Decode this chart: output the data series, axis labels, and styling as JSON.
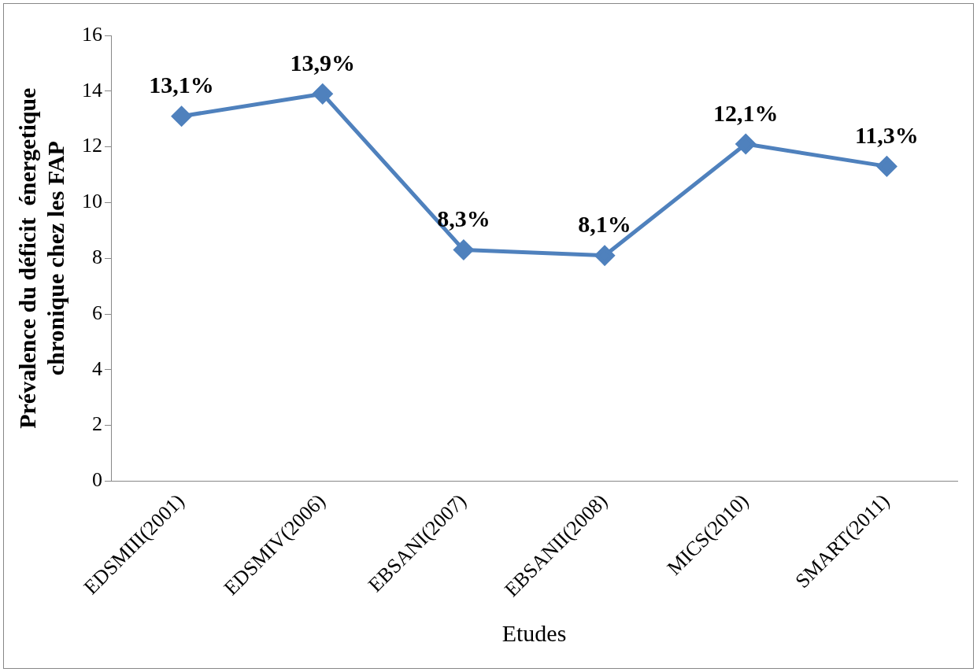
{
  "chart_data": {
    "type": "line",
    "xlabel": "Etudes",
    "ylabel": "Prévalence du déficit  énergetique chronique chez les FAP",
    "categories": [
      "EDSMIII(2001)",
      "EDSMIV(2006)",
      "EBSANI(2007)",
      "EBSANII(2008)",
      "MICS(2010)",
      "SMART(2011)"
    ],
    "series": [
      {
        "color": "#4f81bd",
        "values": [
          13.1,
          13.9,
          8.3,
          8.1,
          12.1,
          11.3
        ],
        "value_labels": [
          "13,1%",
          "13,9%",
          "8,3%",
          "8,1%",
          "12,1%",
          "11,3%"
        ]
      }
    ],
    "ylim": [
      0,
      16
    ],
    "yticks": [
      0,
      2,
      4,
      6,
      8,
      10,
      12,
      14,
      16
    ],
    "marker": "diamond",
    "line_style": "solid",
    "grid": false,
    "legend": false
  }
}
